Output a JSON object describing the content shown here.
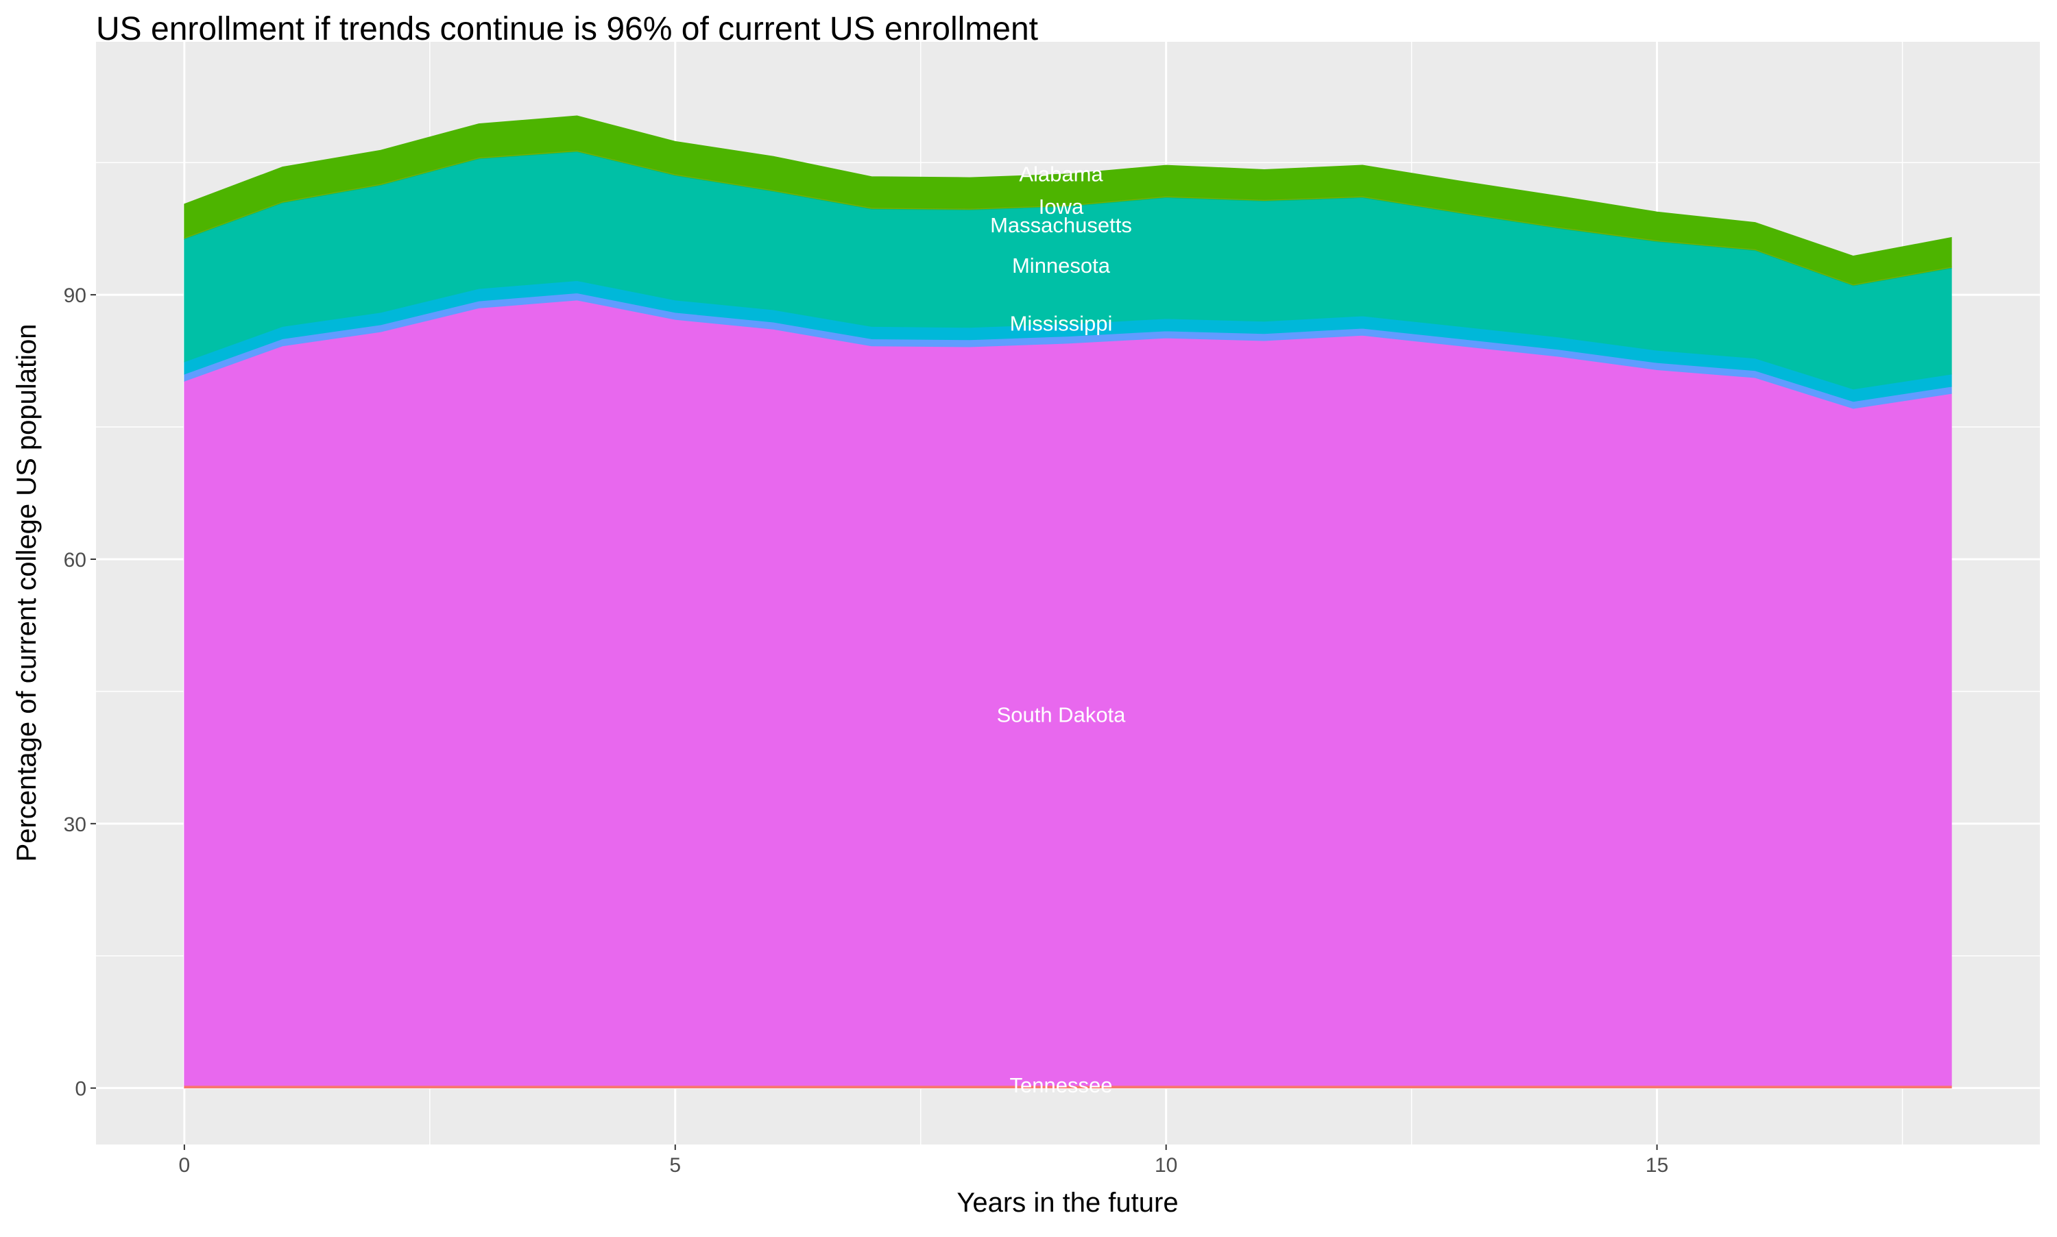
{
  "chart_data": {
    "type": "area",
    "stacked": true,
    "title": "US enrollment if trends continue is 96% of current US enrollment",
    "xlabel": "Years in the future",
    "ylabel": "Percentage of current college US population",
    "xlim": [
      -0.9,
      18.9
    ],
    "ylim": [
      -6.4,
      118.7
    ],
    "x_ticks": [
      0,
      5,
      10,
      15
    ],
    "y_ticks": [
      0,
      30,
      60,
      90
    ],
    "grid": true,
    "legend": "none",
    "x": [
      0,
      1,
      2,
      3,
      4,
      5,
      6,
      7,
      8,
      9,
      10,
      11,
      12,
      13,
      14,
      15,
      16,
      17,
      18
    ],
    "series_bottom_to_top": [
      {
        "name": "Tennessee",
        "color": "#F8766D",
        "values": [
          0.3,
          0.3,
          0.3,
          0.3,
          0.3,
          0.3,
          0.3,
          0.3,
          0.3,
          0.3,
          0.3,
          0.3,
          0.3,
          0.3,
          0.3,
          0.3,
          0.3,
          0.3,
          0.3
        ]
      },
      {
        "name": "South Dakota",
        "color": "#E868EE",
        "values": [
          79.9,
          83.9,
          85.5,
          88.2,
          89.1,
          86.9,
          85.8,
          83.9,
          83.8,
          84.2,
          84.8,
          84.5,
          85.1,
          83.9,
          82.7,
          81.2,
          80.3,
          76.8,
          78.5
        ]
      },
      {
        "name": "",
        "color": "#619CFF",
        "values": [
          0.8,
          0.8,
          0.8,
          0.8,
          0.8,
          0.8,
          0.8,
          0.8,
          0.8,
          0.8,
          0.8,
          0.8,
          0.8,
          0.8,
          0.8,
          0.8,
          0.8,
          0.8,
          0.8
        ]
      },
      {
        "name": "Mississippi",
        "color": "#00B8D9",
        "values": [
          1.4,
          1.4,
          1.4,
          1.4,
          1.4,
          1.4,
          1.4,
          1.4,
          1.4,
          1.4,
          1.4,
          1.4,
          1.4,
          1.4,
          1.4,
          1.4,
          1.4,
          1.4,
          1.4
        ]
      },
      {
        "name": "Minnesota",
        "color": "#00C0A6",
        "values": [
          13.9,
          14.0,
          14.4,
          14.7,
          14.6,
          14.1,
          13.4,
          13.3,
          13.3,
          13.3,
          13.7,
          13.6,
          13.4,
          12.8,
          12.3,
          12.3,
          12.2,
          11.7,
          12.0
        ]
      },
      {
        "name": "Massachusetts",
        "color": "#00BE7A",
        "values": [
          0.1,
          0.1,
          0.1,
          0.1,
          0.1,
          0.1,
          0.1,
          0.1,
          0.1,
          0.1,
          0.1,
          0.1,
          0.1,
          0.1,
          0.1,
          0.1,
          0.1,
          0.1,
          0.1
        ]
      },
      {
        "name": "Iowa",
        "color": "#7CAE00",
        "values": [
          0.1,
          0.1,
          0.1,
          0.1,
          0.1,
          0.1,
          0.1,
          0.1,
          0.1,
          0.1,
          0.1,
          0.1,
          0.1,
          0.1,
          0.1,
          0.1,
          0.1,
          0.1,
          0.1
        ]
      },
      {
        "name": "Alabama",
        "color": "#4DB400",
        "values": [
          3.8,
          3.9,
          3.8,
          3.8,
          3.9,
          3.7,
          3.8,
          3.5,
          3.5,
          3.5,
          3.5,
          3.4,
          3.5,
          3.5,
          3.5,
          3.2,
          3.0,
          3.2,
          3.3
        ]
      }
    ]
  }
}
